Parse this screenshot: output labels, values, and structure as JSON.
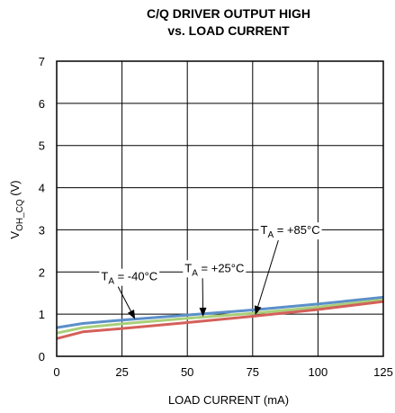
{
  "chart_data": {
    "type": "line",
    "title_line1": "C/Q DRIVER OUTPUT HIGH",
    "title_line2": "vs. LOAD CURRENT",
    "xlabel": "LOAD CURRENT (mA)",
    "ylabel_main": "V",
    "ylabel_sub": "OH_CQ",
    "ylabel_unit": " (V)",
    "xlim": [
      0,
      125
    ],
    "ylim": [
      0,
      7
    ],
    "x_ticks": [
      0,
      25,
      50,
      75,
      100,
      125
    ],
    "y_ticks": [
      0,
      1,
      2,
      3,
      4,
      5,
      6,
      7
    ],
    "grid": true,
    "series": [
      {
        "name": "TA = -40°C",
        "color": "#5b8fc9",
        "x": [
          0,
          10,
          25,
          50,
          75,
          100,
          125
        ],
        "y": [
          0.68,
          0.78,
          0.86,
          0.98,
          1.1,
          1.24,
          1.4
        ]
      },
      {
        "name": "TA = +25°C",
        "color": "#a9cf7a",
        "x": [
          0,
          10,
          25,
          50,
          75,
          100,
          125
        ],
        "y": [
          0.55,
          0.68,
          0.77,
          0.9,
          1.02,
          1.17,
          1.34
        ]
      },
      {
        "name": "TA = +85°C",
        "color": "#d4605a",
        "x": [
          0,
          10,
          25,
          50,
          75,
          100,
          125
        ],
        "y": [
          0.42,
          0.58,
          0.66,
          0.8,
          0.95,
          1.11,
          1.3
        ]
      }
    ],
    "annotations": [
      {
        "main": "T",
        "sub": "A",
        "rest": " = -40°C",
        "label_x": 17,
        "label_y": 1.8,
        "arrow_to_x": 30,
        "arrow_to_y": 0.88
      },
      {
        "main": "T",
        "sub": "A",
        "rest": " = +25°C",
        "label_x": 49,
        "label_y": 2.0,
        "arrow_to_x": 56,
        "arrow_to_y": 0.94
      },
      {
        "main": "T",
        "sub": "A",
        "rest": " = +85°C",
        "label_x": 78,
        "label_y": 2.9,
        "arrow_to_x": 76,
        "arrow_to_y": 0.98
      }
    ]
  }
}
